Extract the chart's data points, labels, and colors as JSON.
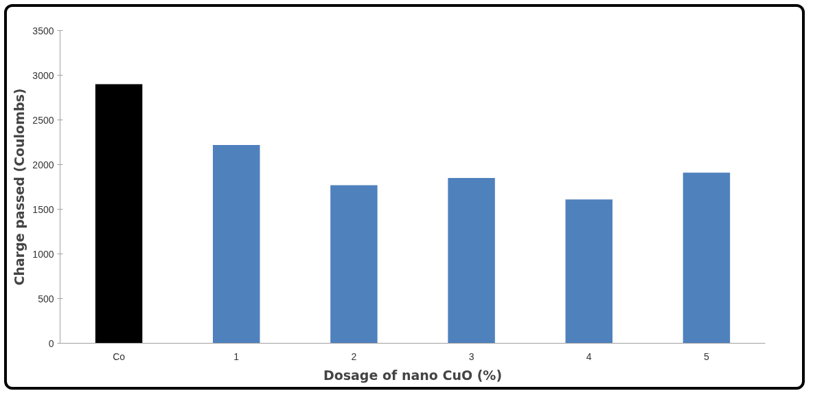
{
  "chart_data": {
    "type": "bar",
    "xlabel": "Dosage of nano CuO (%)",
    "ylabel": "Charge passed (Coulombs)",
    "categories": [
      "Co",
      "1",
      "2",
      "3",
      "4",
      "5"
    ],
    "values": [
      2900,
      2220,
      1770,
      1850,
      1610,
      1910
    ],
    "colors": [
      "#000000",
      "#4f81bd",
      "#4f81bd",
      "#4f81bd",
      "#4f81bd",
      "#4f81bd"
    ],
    "ylim": [
      0,
      3500
    ],
    "yticks": [
      0,
      500,
      1000,
      1500,
      2000,
      2500,
      3000,
      3500
    ],
    "grid": false
  }
}
